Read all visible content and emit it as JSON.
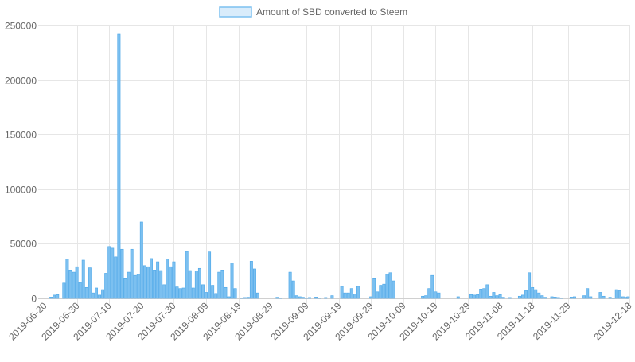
{
  "chart_data": {
    "type": "bar",
    "legend": {
      "label": "Amount of SBD converted to Steem",
      "position": "top",
      "fill_color": "#d9ecfb",
      "border_color": "#7cc0f0"
    },
    "bar_color": "#7cc0f0",
    "bar_border_color": "#4aa6e8",
    "grid": true,
    "ylim": [
      0,
      250000
    ],
    "yticks": [
      "0",
      "50000",
      "100000",
      "150000",
      "200000",
      "250000"
    ],
    "x_start": "2019-06-20",
    "x_end": "2019-12-18",
    "xticks": [
      "2019-06-20",
      "2019-06-30",
      "2019-07-10",
      "2019-07-20",
      "2019-07-30",
      "2019-08-09",
      "2019-08-19",
      "2019-08-29",
      "2019-09-09",
      "2019-09-19",
      "2019-09-29",
      "2019-10-09",
      "2019-10-19",
      "2019-10-29",
      "2019-11-08",
      "2019-11-18",
      "2019-11-29",
      "2019-12-18"
    ],
    "categories": [
      "2019-06-20",
      "2019-06-21",
      "2019-06-22",
      "2019-06-23",
      "2019-06-24",
      "2019-06-25",
      "2019-06-26",
      "2019-06-27",
      "2019-06-28",
      "2019-06-29",
      "2019-06-30",
      "2019-07-01",
      "2019-07-02",
      "2019-07-03",
      "2019-07-04",
      "2019-07-05",
      "2019-07-06",
      "2019-07-07",
      "2019-07-08",
      "2019-07-09",
      "2019-07-10",
      "2019-07-11",
      "2019-07-12",
      "2019-07-13",
      "2019-07-14",
      "2019-07-15",
      "2019-07-16",
      "2019-07-17",
      "2019-07-18",
      "2019-07-19",
      "2019-07-20",
      "2019-07-21",
      "2019-07-22",
      "2019-07-23",
      "2019-07-24",
      "2019-07-25",
      "2019-07-26",
      "2019-07-27",
      "2019-07-28",
      "2019-07-29",
      "2019-07-30",
      "2019-07-31",
      "2019-08-01",
      "2019-08-02",
      "2019-08-03",
      "2019-08-04",
      "2019-08-05",
      "2019-08-06",
      "2019-08-07",
      "2019-08-08",
      "2019-08-09",
      "2019-08-10",
      "2019-08-11",
      "2019-08-12",
      "2019-08-13",
      "2019-08-14",
      "2019-08-15",
      "2019-08-16",
      "2019-08-17",
      "2019-08-18",
      "2019-08-19",
      "2019-08-20",
      "2019-08-21",
      "2019-08-22",
      "2019-08-23",
      "2019-08-24",
      "2019-08-25",
      "2019-08-26",
      "2019-08-27",
      "2019-08-28",
      "2019-08-29",
      "2019-08-30",
      "2019-08-31",
      "2019-09-01",
      "2019-09-02",
      "2019-09-03",
      "2019-09-04",
      "2019-09-05",
      "2019-09-06",
      "2019-09-07",
      "2019-09-08",
      "2019-09-09",
      "2019-09-10",
      "2019-09-11",
      "2019-09-12",
      "2019-09-13",
      "2019-09-14",
      "2019-09-15",
      "2019-09-16",
      "2019-09-17",
      "2019-09-18",
      "2019-09-19",
      "2019-09-20",
      "2019-09-21",
      "2019-09-22",
      "2019-09-23",
      "2019-09-24",
      "2019-09-25",
      "2019-09-26",
      "2019-09-27",
      "2019-09-28",
      "2019-09-29",
      "2019-09-30",
      "2019-10-01",
      "2019-10-02",
      "2019-10-03",
      "2019-10-04",
      "2019-10-05",
      "2019-10-06",
      "2019-10-07",
      "2019-10-08",
      "2019-10-09",
      "2019-10-10",
      "2019-10-11",
      "2019-10-12",
      "2019-10-13",
      "2019-10-14",
      "2019-10-15",
      "2019-10-16",
      "2019-10-17",
      "2019-10-18",
      "2019-10-19",
      "2019-10-20",
      "2019-10-21",
      "2019-10-22",
      "2019-10-23",
      "2019-10-24",
      "2019-10-25",
      "2019-10-26",
      "2019-10-27",
      "2019-10-28",
      "2019-10-29",
      "2019-10-30",
      "2019-10-31",
      "2019-11-01",
      "2019-11-02",
      "2019-11-03",
      "2019-11-04",
      "2019-11-05",
      "2019-11-06",
      "2019-11-07",
      "2019-11-08",
      "2019-11-09",
      "2019-11-10",
      "2019-11-11",
      "2019-11-12",
      "2019-11-13",
      "2019-11-14",
      "2019-11-15",
      "2019-11-16",
      "2019-11-17",
      "2019-11-18",
      "2019-11-19",
      "2019-11-20",
      "2019-11-21",
      "2019-11-22",
      "2019-11-23",
      "2019-11-24",
      "2019-11-25",
      "2019-11-26",
      "2019-11-27",
      "2019-11-28",
      "2019-11-29",
      "2019-11-30",
      "2019-12-01",
      "2019-12-02",
      "2019-12-03",
      "2019-12-04",
      "2019-12-05",
      "2019-12-06",
      "2019-12-07",
      "2019-12-08",
      "2019-12-09",
      "2019-12-10",
      "2019-12-11",
      "2019-12-12",
      "2019-12-13",
      "2019-12-14",
      "2019-12-15",
      "2019-12-16",
      "2019-12-17",
      "2019-12-18"
    ],
    "values": [
      0,
      0,
      1200,
      3000,
      3500,
      0,
      14000,
      36000,
      26000,
      24000,
      29000,
      14500,
      35000,
      10000,
      28000,
      5000,
      9500,
      3000,
      8000,
      23000,
      47500,
      46000,
      38000,
      242000,
      45000,
      18000,
      24000,
      45000,
      21000,
      22000,
      70000,
      30000,
      29000,
      36500,
      26000,
      33500,
      25500,
      12500,
      36000,
      29000,
      33500,
      10500,
      9000,
      9500,
      43000,
      25500,
      9500,
      25000,
      27500,
      12500,
      5500,
      42500,
      12000,
      4500,
      24000,
      26000,
      10000,
      1500,
      32500,
      9000,
      0,
      500,
      800,
      1000,
      34000,
      27000,
      5000,
      0,
      0,
      0,
      0,
      0,
      1000,
      500,
      0,
      0,
      24000,
      16000,
      2500,
      1500,
      1000,
      500,
      800,
      0,
      1200,
      500,
      0,
      800,
      0,
      2500,
      0,
      0,
      11000,
      5000,
      5000,
      9000,
      4000,
      11000,
      0,
      0,
      0,
      1500,
      18000,
      6000,
      12000,
      13000,
      22000,
      23500,
      16000,
      0,
      0,
      0,
      0,
      0,
      0,
      0,
      0,
      2000,
      2500,
      9000,
      21000,
      6000,
      5000,
      0,
      0,
      0,
      0,
      0,
      1500,
      0,
      0,
      0,
      3500,
      3000,
      3500,
      8500,
      9000,
      12500,
      2000,
      5500,
      2500,
      3500,
      1000,
      0,
      800,
      0,
      0,
      2000,
      3000,
      7000,
      23500,
      10000,
      8000,
      5000,
      2500,
      1000,
      0,
      1500,
      1200,
      800,
      500,
      0,
      0,
      1200,
      1500,
      0,
      0,
      2500,
      9000,
      1500,
      0,
      0,
      5500,
      2000,
      0,
      1000,
      500,
      8000,
      7000,
      1500,
      1000,
      1500
    ]
  }
}
